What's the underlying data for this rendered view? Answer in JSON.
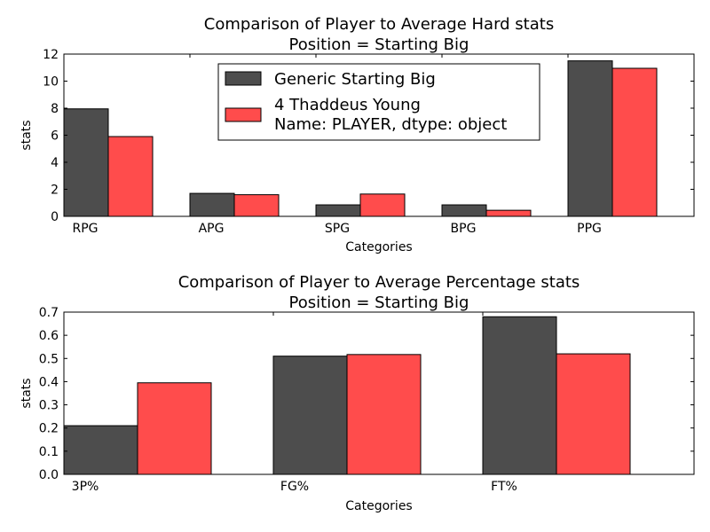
{
  "chart_data": [
    {
      "type": "bar",
      "title": "Comparison of Player to Average Hard stats",
      "subtitle": "Position = Starting Big",
      "xlabel": "Categories",
      "ylabel": "stats",
      "categories": [
        "RPG",
        "APG",
        "SPG",
        "BPG",
        "PPG"
      ],
      "ylim": [
        0,
        12
      ],
      "yticks": [
        "0",
        "2",
        "4",
        "6",
        "8",
        "10",
        "12"
      ],
      "legend_position": "upper-center",
      "series": [
        {
          "name": "Generic Starting Big",
          "color": "#4d4d4d",
          "values": [
            7.95,
            1.7,
            0.85,
            0.85,
            11.5
          ]
        },
        {
          "name": "4    Thaddeus Young\nName: PLAYER, dtype: object",
          "color": "#ff4c4c",
          "values": [
            5.9,
            1.6,
            1.65,
            0.45,
            10.95
          ]
        }
      ]
    },
    {
      "type": "bar",
      "title": "Comparison of Player to Average Percentage stats",
      "subtitle": "Position = Starting Big",
      "xlabel": "Categories",
      "ylabel": "stats",
      "categories": [
        "3P%",
        "FG%",
        "FT%"
      ],
      "ylim": [
        0,
        0.7
      ],
      "yticks": [
        "0.0",
        "0.1",
        "0.2",
        "0.3",
        "0.4",
        "0.5",
        "0.6",
        "0.7"
      ],
      "series": [
        {
          "name": "Generic Starting Big",
          "color": "#4d4d4d",
          "values": [
            0.21,
            0.51,
            0.68
          ]
        },
        {
          "name": "4    Thaddeus Young\nName: PLAYER, dtype: object",
          "color": "#ff4c4c",
          "values": [
            0.395,
            0.517,
            0.52
          ]
        }
      ]
    }
  ]
}
